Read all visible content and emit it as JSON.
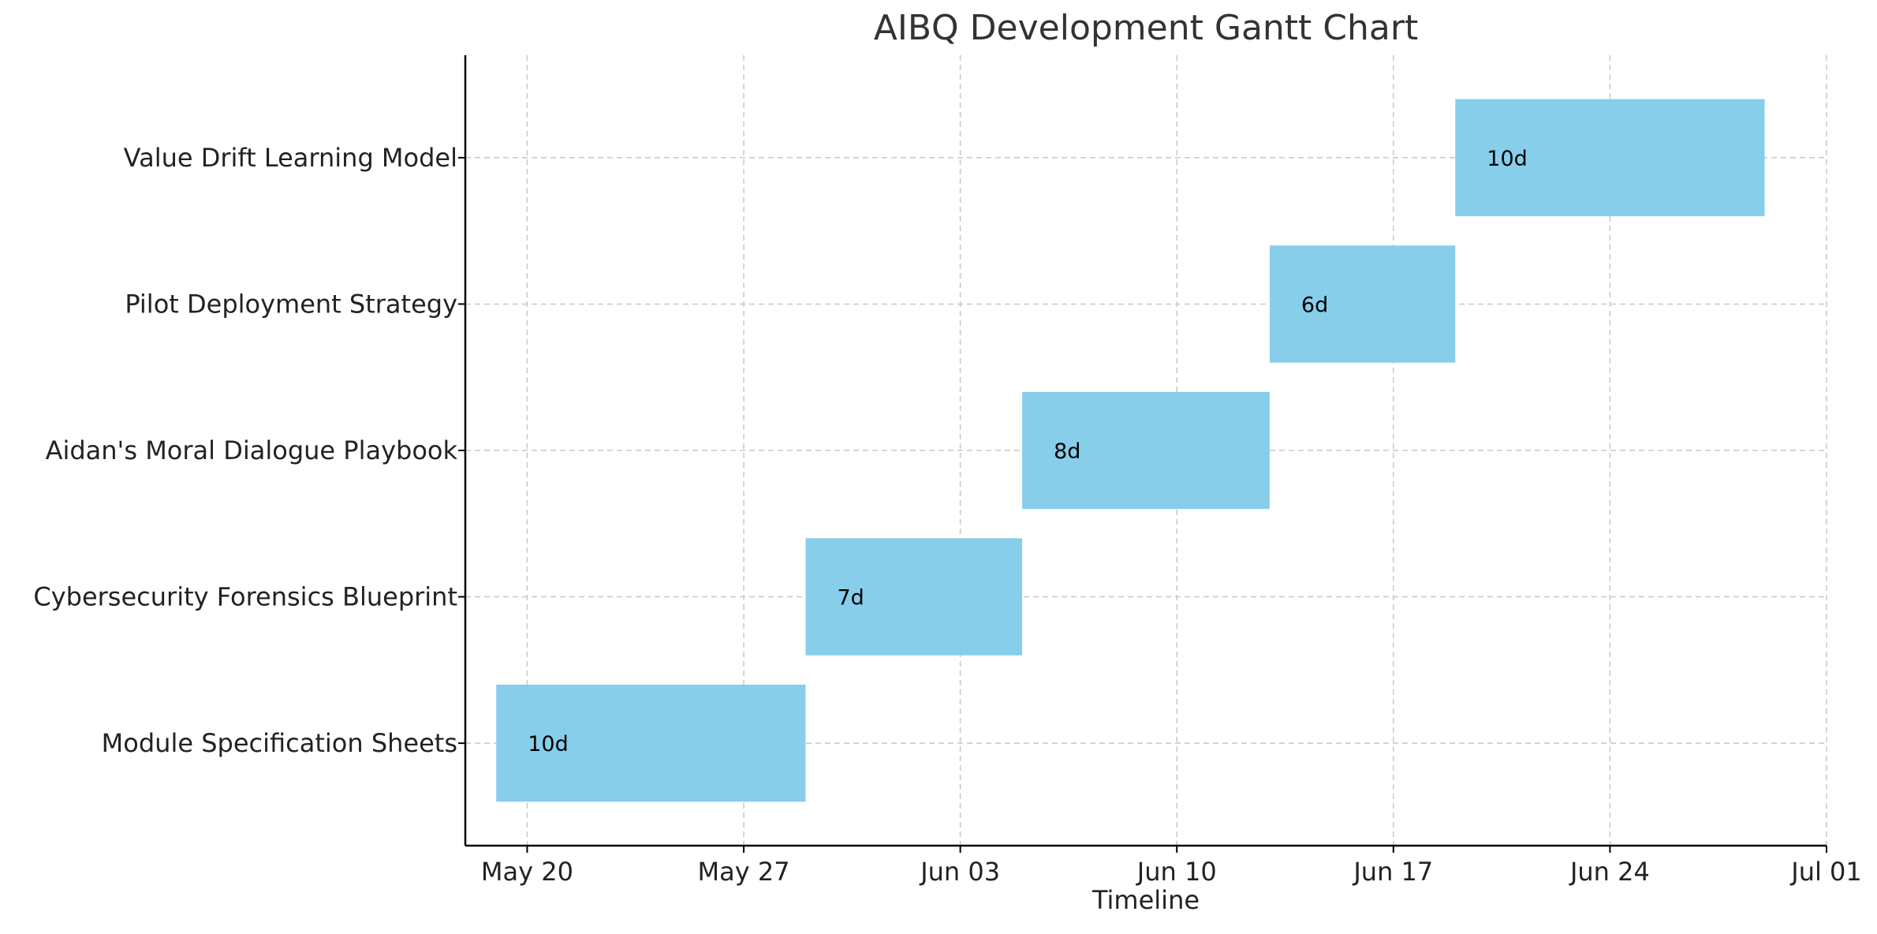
{
  "chart_data": {
    "type": "bar",
    "orientation": "horizontal-gantt",
    "title": "AIBQ Development Gantt Chart",
    "xlabel": "Timeline",
    "ylabel": "",
    "x_axis_type": "date",
    "xlim": [
      "2024-05-18",
      "2024-07-01"
    ],
    "x_ticks": [
      {
        "date": "2024-05-20",
        "label": "May 20"
      },
      {
        "date": "2024-05-27",
        "label": "May 27"
      },
      {
        "date": "2024-06-03",
        "label": "Jun 03"
      },
      {
        "date": "2024-06-10",
        "label": "Jun 10"
      },
      {
        "date": "2024-06-17",
        "label": "Jun 17"
      },
      {
        "date": "2024-06-24",
        "label": "Jun 24"
      },
      {
        "date": "2024-07-01",
        "label": "Jul 01"
      }
    ],
    "grid": true,
    "legend": "none",
    "bar_color": "#87ceeb",
    "tasks": [
      {
        "name": "Module Specification Sheets",
        "start": "2024-05-19",
        "end": "2024-05-29",
        "label": "10d"
      },
      {
        "name": "Cybersecurity Forensics Blueprint",
        "start": "2024-05-29",
        "end": "2024-06-05",
        "label": "7d"
      },
      {
        "name": "Aidan's Moral Dialogue Playbook",
        "start": "2024-06-05",
        "end": "2024-06-13",
        "label": "8d"
      },
      {
        "name": "Pilot Deployment Strategy",
        "start": "2024-06-13",
        "end": "2024-06-19",
        "label": "6d"
      },
      {
        "name": "Value Drift Learning Model",
        "start": "2024-06-19",
        "end": "2024-06-29",
        "label": "10d"
      }
    ]
  }
}
